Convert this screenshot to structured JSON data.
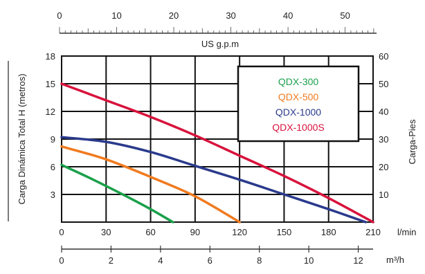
{
  "chart_data": {
    "type": "line",
    "title": "",
    "grid": true,
    "legend_position": "top-right",
    "x_axis": {
      "label": "l/min",
      "range": [
        0,
        210
      ],
      "ticks": [
        0,
        30,
        60,
        90,
        120,
        150,
        180,
        210
      ],
      "tick_labels": [
        "0",
        "30",
        "60",
        "90",
        "120",
        "150",
        "180",
        "210"
      ]
    },
    "x_axis_bottom": {
      "label": "m³/h",
      "range": [
        0,
        12.6
      ],
      "ticks": [
        0,
        2,
        4,
        6,
        8,
        10,
        12
      ],
      "tick_labels": [
        "0",
        "2",
        "4",
        "6",
        "8",
        "10",
        "12"
      ]
    },
    "x_axis_top": {
      "label": "US g.p.m",
      "range": [
        0,
        55.5
      ],
      "ticks": [
        0,
        10,
        20,
        30,
        40,
        50
      ],
      "tick_labels": [
        "0",
        "10",
        "20",
        "30",
        "40",
        "50"
      ]
    },
    "y_axis_left": {
      "label": "Carga Dinámica Total H (metros)",
      "range": [
        0,
        18
      ],
      "ticks": [
        3,
        6,
        9,
        12,
        15,
        18
      ],
      "tick_labels": [
        "3",
        "6",
        "9",
        "12",
        "15",
        "18"
      ]
    },
    "y_axis_right": {
      "label": "Carga-Pies",
      "range": [
        0,
        60
      ],
      "ticks": [
        10,
        20,
        30,
        40,
        50,
        60
      ],
      "tick_labels": [
        "10",
        "20",
        "30",
        "40",
        "50",
        "60"
      ]
    },
    "series": [
      {
        "name": "QDX-300",
        "color": "#1aa04a",
        "x": [
          0,
          20,
          40,
          60,
          75
        ],
        "y": [
          6.2,
          4.7,
          3.1,
          1.4,
          0
        ]
      },
      {
        "name": "QDX-500",
        "color": "#f07a1e",
        "x": [
          0,
          30,
          60,
          90,
          120
        ],
        "y": [
          8.2,
          6.8,
          4.9,
          2.8,
          0
        ]
      },
      {
        "name": "QDX-1000",
        "color": "#2a3a8c",
        "x": [
          0,
          30,
          60,
          90,
          120,
          150,
          180,
          205
        ],
        "y": [
          9.2,
          8.7,
          7.6,
          6.1,
          4.6,
          3.0,
          1.4,
          0
        ]
      },
      {
        "name": "QDX-1000S",
        "color": "#d8123c",
        "x": [
          0,
          30,
          60,
          90,
          120,
          150,
          180,
          210
        ],
        "y": [
          15,
          13.2,
          11.4,
          9.4,
          7.2,
          5.0,
          2.6,
          0
        ]
      }
    ]
  }
}
